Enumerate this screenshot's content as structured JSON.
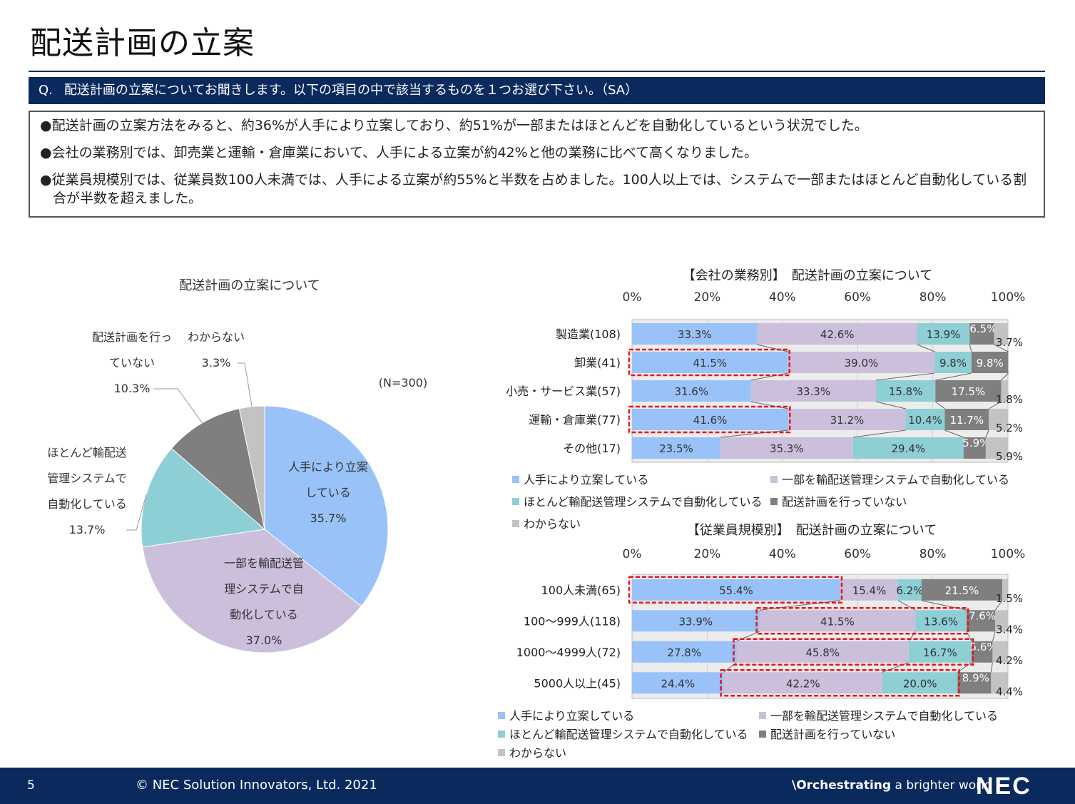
{
  "page": {
    "title": "配送計画の立案",
    "question_prefix": "Q.",
    "question": "配送計画の立案についてお聞きします。以下の項目の中で該当するものを１つお選び下さい。（SA）",
    "bullets": [
      "●配送計画の立案方法をみると、約36%が人手により立案しており、約51%が一部またはほとんどを自動化しているという状況でした。",
      "●会社の業務別では、卸売業と運輸・倉庫業において、人手による立案が約42%と他の業務に比べて高くなりました。",
      "●従業員規模別では、従業員数100人未満では、人手による立案が約55%と半数を占めました。100人以上では、システムで一部またはほとんど自動化している割合が半数を超えました。"
    ],
    "footer": {
      "page_number": "5",
      "copyright": "© NEC Solution Innovators, Ltd. 2021",
      "tagline_prefix": "\\Orchestrating",
      "tagline_suffix": " a brighter world",
      "logo": "NEC"
    },
    "colors": {
      "navy": "#0a2a5e",
      "blue": "#99c2f8",
      "lavender": "#cbbfdb",
      "teal": "#8ecfd6",
      "dark_gray": "#7f7f7f",
      "light_gray": "#c3c3c3",
      "highlight": "#e3171b"
    }
  },
  "chart_data": [
    {
      "type": "pie",
      "title": "配送計画の立案について",
      "note": "(N=300)",
      "slices": [
        {
          "label_lines": [
            "人手により立案",
            "している"
          ],
          "value": 35.7,
          "label": "35.7%"
        },
        {
          "label_lines": [
            "一部を輸配送管",
            "理システムで自",
            "動化している"
          ],
          "value": 37.0,
          "label": "37.0%"
        },
        {
          "label_lines": [
            "ほとんど輸配送",
            "管理システムで",
            "自動化している"
          ],
          "value": 13.7,
          "label": "13.7%"
        },
        {
          "label_lines": [
            "配送計画を行っ",
            "ていない"
          ],
          "value": 10.3,
          "label": "10.3%"
        },
        {
          "label_lines": [
            "わからない"
          ],
          "value": 3.3,
          "label": "3.3%"
        }
      ]
    },
    {
      "type": "bar",
      "stacked": "100%",
      "orientation": "horizontal",
      "title": "【会社の業務別】　配送計画の立案について",
      "x_ticks": [
        "0%",
        "20%",
        "40%",
        "60%",
        "80%",
        "100%"
      ],
      "categories": [
        "製造業(108)",
        "卸業(41)",
        "小売・サービス業(57)",
        "運輸・倉庫業(77)",
        "その他(17)"
      ],
      "series": [
        {
          "name": "人手により立案している",
          "values": [
            33.3,
            41.5,
            31.6,
            41.6,
            23.5
          ],
          "labels": [
            "33.3%",
            "41.5%",
            "31.6%",
            "41.6%",
            "23.5%"
          ]
        },
        {
          "name": "一部を輸配送管理システムで自動化している",
          "values": [
            42.6,
            39.0,
            33.3,
            31.2,
            35.3
          ],
          "labels": [
            "42.6%",
            "39.0%",
            "33.3%",
            "31.2%",
            "35.3%"
          ]
        },
        {
          "name": "ほとんど輸配送管理システムで自動化している",
          "values": [
            13.9,
            9.8,
            15.8,
            10.4,
            29.4
          ],
          "labels": [
            "13.9%",
            "9.8%",
            "15.8%",
            "10.4%",
            "29.4%"
          ]
        },
        {
          "name": "配送計画を行っていない",
          "values": [
            6.5,
            9.8,
            17.5,
            11.7,
            5.9
          ],
          "labels": [
            "6.5%",
            "9.8%",
            "17.5%",
            "11.7%",
            "5.9%"
          ]
        },
        {
          "name": "わからない",
          "values": [
            3.7,
            0.0,
            1.8,
            5.2,
            5.9
          ],
          "labels": [
            "3.7%",
            "",
            "1.8%",
            "5.2%",
            "5.9%"
          ]
        }
      ],
      "highlights": [
        {
          "row": 1,
          "from_series": 0,
          "to_series": 0
        },
        {
          "row": 3,
          "from_series": 0,
          "to_series": 0
        }
      ]
    },
    {
      "type": "bar",
      "stacked": "100%",
      "orientation": "horizontal",
      "title": "【従業員規模別】　配送計画の立案について",
      "x_ticks": [
        "0%",
        "20%",
        "40%",
        "60%",
        "80%",
        "100%"
      ],
      "categories": [
        "100人未満(65)",
        "100～999人(118)",
        "1000～4999人(72)",
        "5000人以上(45)"
      ],
      "series": [
        {
          "name": "人手により立案している",
          "values": [
            55.4,
            33.9,
            27.8,
            24.4
          ],
          "labels": [
            "55.4%",
            "33.9%",
            "27.8%",
            "24.4%"
          ]
        },
        {
          "name": "一部を輸配送管理システムで自動化している",
          "values": [
            15.4,
            41.5,
            45.8,
            42.2
          ],
          "labels": [
            "15.4%",
            "41.5%",
            "45.8%",
            "42.2%"
          ]
        },
        {
          "name": "ほとんど輸配送管理システムで自動化している",
          "values": [
            6.2,
            13.6,
            16.7,
            20.0
          ],
          "labels": [
            "6.2%",
            "13.6%",
            "16.7%",
            "20.0%"
          ]
        },
        {
          "name": "配送計画を行っていない",
          "values": [
            21.5,
            7.6,
            5.6,
            8.9
          ],
          "labels": [
            "21.5%",
            "7.6%",
            "5.6%",
            "8.9%"
          ]
        },
        {
          "name": "わからない",
          "values": [
            1.5,
            3.4,
            4.2,
            4.4
          ],
          "labels": [
            "1.5%",
            "3.4%",
            "4.2%",
            "4.4%"
          ]
        }
      ],
      "highlights": [
        {
          "row": 0,
          "from_series": 0,
          "to_series": 0
        },
        {
          "row": 1,
          "from_series": 1,
          "to_series": 2
        },
        {
          "row": 2,
          "from_series": 1,
          "to_series": 2
        },
        {
          "row": 3,
          "from_series": 1,
          "to_series": 2
        }
      ]
    }
  ]
}
